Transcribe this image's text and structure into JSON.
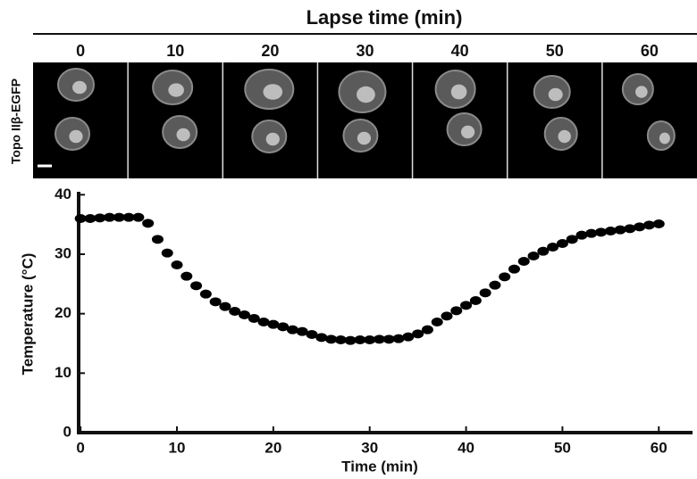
{
  "image_strip": {
    "title": "Lapse time (min)",
    "frames": [
      0,
      10,
      20,
      30,
      40,
      50,
      60
    ],
    "ylabel": "Topo IIβ-EGFP"
  },
  "chart_data": {
    "type": "scatter",
    "xlabel": "Time (min)",
    "ylabel": "Temperature (°C)",
    "color": "#000000",
    "x": [
      0,
      1,
      2,
      3,
      4,
      5,
      6,
      7,
      8,
      9,
      10,
      11,
      12,
      13,
      14,
      15,
      16,
      17,
      18,
      19,
      20,
      21,
      22,
      23,
      24,
      25,
      26,
      27,
      28,
      29,
      30,
      31,
      32,
      33,
      34,
      35,
      36,
      37,
      38,
      39,
      40,
      41,
      42,
      43,
      44,
      45,
      46,
      47,
      48,
      49,
      50,
      51,
      52,
      53,
      54,
      55,
      56,
      57,
      58,
      59,
      60
    ],
    "values": [
      36,
      36,
      36.1,
      36.2,
      36.2,
      36.2,
      36.2,
      35.2,
      32.5,
      30.2,
      28.2,
      26.3,
      24.7,
      23.3,
      22,
      21.2,
      20.4,
      19.8,
      19.2,
      18.6,
      18.2,
      17.8,
      17.3,
      17,
      16.5,
      16,
      15.7,
      15.6,
      15.5,
      15.6,
      15.6,
      15.7,
      15.7,
      15.8,
      16.1,
      16.6,
      17.3,
      18.6,
      19.6,
      20.5,
      21.4,
      22.2,
      23.5,
      24.8,
      26.2,
      27.5,
      28.8,
      29.7,
      30.5,
      31.2,
      31.8,
      32.5,
      33.2,
      33.5,
      33.7,
      33.9,
      34.1,
      34.3,
      34.6,
      34.9,
      35.1
    ],
    "xlim": [
      -0.2,
      63.5
    ],
    "ylim": [
      0,
      40.5
    ],
    "xticks": [
      0,
      10,
      20,
      30,
      40,
      50,
      60
    ],
    "yticks": [
      0,
      10,
      20,
      30,
      40
    ]
  }
}
